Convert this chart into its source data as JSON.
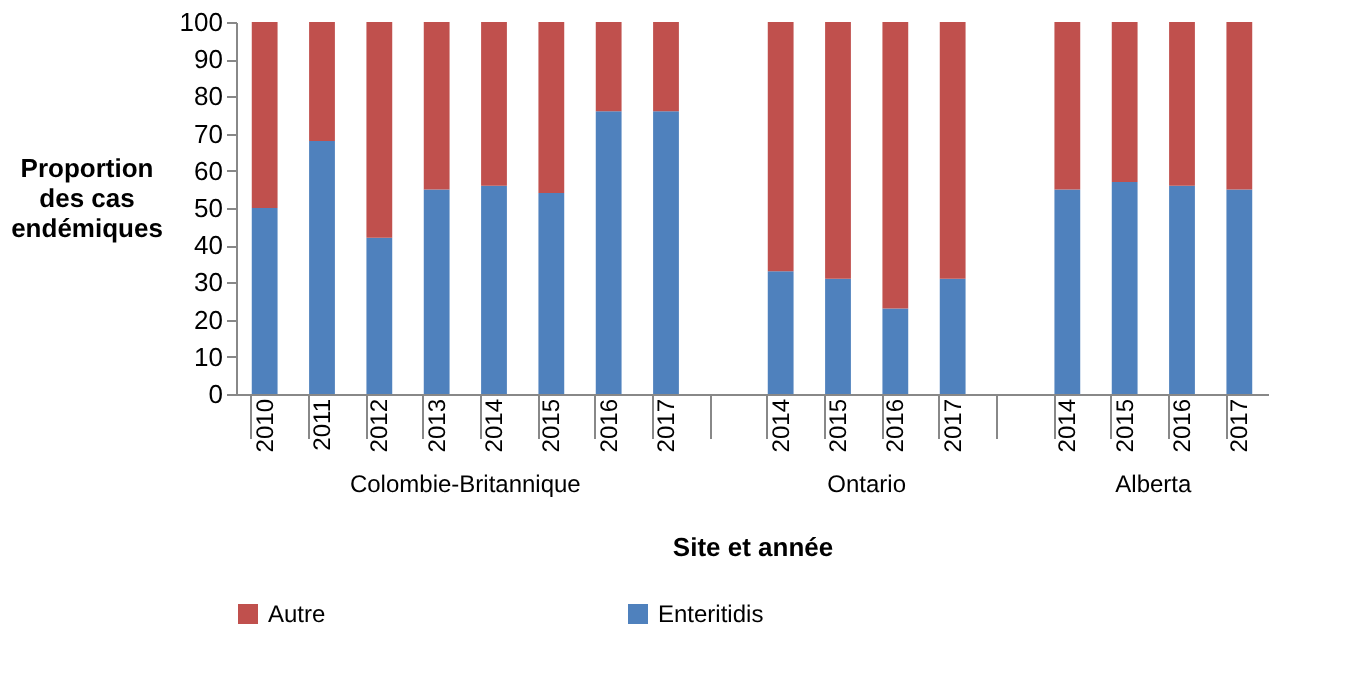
{
  "chart_data": {
    "type": "bar",
    "stacked": true,
    "categories": [
      "2010",
      "2011",
      "2012",
      "2013",
      "2014",
      "2015",
      "2016",
      "2017",
      null,
      "2014",
      "2015",
      "2016",
      "2017",
      null,
      "2014",
      "2015",
      "2016",
      "2017"
    ],
    "series": [
      {
        "name": "Enteritidis",
        "color": "#4f81bd",
        "values": [
          50,
          68,
          42,
          55,
          56,
          54,
          76,
          76,
          null,
          33,
          31,
          23,
          31,
          null,
          55,
          57,
          56,
          55
        ]
      },
      {
        "name": "Autre",
        "color": "#c0504d",
        "values": [
          50,
          32,
          58,
          45,
          44,
          46,
          24,
          24,
          null,
          67,
          69,
          77,
          69,
          null,
          45,
          43,
          44,
          45
        ]
      }
    ],
    "ylim": [
      0,
      100
    ],
    "yticks": [
      0,
      10,
      20,
      30,
      40,
      50,
      60,
      70,
      80,
      90,
      100
    ],
    "xlabel": "Site et année",
    "ylabel": "Proportion des cas endémiques",
    "annotations": [
      "Colombie-Britannique",
      "Ontario",
      "Alberta"
    ],
    "grid": false,
    "legend": "bottom"
  }
}
